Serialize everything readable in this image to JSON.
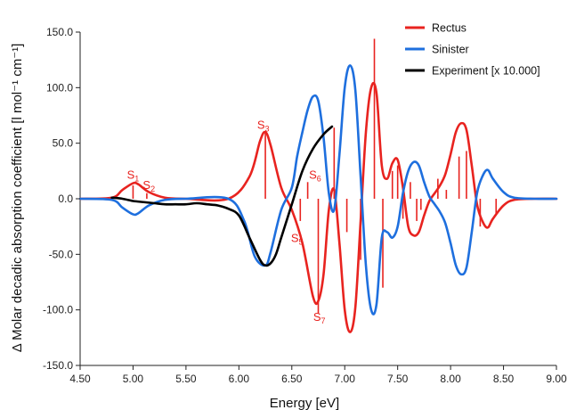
{
  "chart_data": {
    "type": "line",
    "title": "",
    "xlabel": "Energy [eV]",
    "ylabel": "Δ Molar decadic absorption coefficient [l mol⁻¹ cm⁻¹]",
    "xlim": [
      4.5,
      9.0
    ],
    "ylim": [
      -150.0,
      150.0
    ],
    "x_ticks": [
      "4.50",
      "5.00",
      "5.50",
      "6.00",
      "6.50",
      "7.00",
      "7.50",
      "8.00",
      "8.50",
      "9.00"
    ],
    "y_ticks": [
      "150.0",
      "100.0",
      "50.0",
      "0.0",
      "-50.0",
      "-100.0",
      "-150.0"
    ],
    "legend_position": "top-right",
    "series": [
      {
        "name": "Rectus",
        "color": "#e8231f",
        "x": [
          4.5,
          4.8,
          4.9,
          5.0,
          5.05,
          5.15,
          5.3,
          5.5,
          5.9,
          6.1,
          6.2,
          6.25,
          6.3,
          6.4,
          6.5,
          6.6,
          6.7,
          6.75,
          6.8,
          6.85,
          6.9,
          6.95,
          7.0,
          7.05,
          7.1,
          7.15,
          7.2,
          7.25,
          7.3,
          7.35,
          7.4,
          7.45,
          7.5,
          7.55,
          7.6,
          7.65,
          7.7,
          7.75,
          7.8,
          7.85,
          7.9,
          7.95,
          8.0,
          8.05,
          8.1,
          8.15,
          8.2,
          8.25,
          8.3,
          8.35,
          8.4,
          8.5,
          8.6,
          8.8,
          9.0
        ],
        "y": [
          0,
          1,
          8,
          14,
          13,
          6,
          1,
          0,
          0,
          20,
          52,
          60,
          48,
          10,
          -10,
          -40,
          -88,
          -92,
          -68,
          -10,
          8,
          -40,
          -100,
          -120,
          -98,
          -20,
          60,
          100,
          95,
          30,
          18,
          32,
          35,
          10,
          -25,
          -33,
          -30,
          -15,
          -2,
          5,
          12,
          22,
          40,
          60,
          68,
          62,
          30,
          -5,
          -20,
          -26,
          -18,
          -6,
          -1,
          0,
          0
        ]
      },
      {
        "name": "Sinister",
        "color": "#1e6fde",
        "x": [
          4.5,
          4.8,
          4.9,
          5.0,
          5.05,
          5.15,
          5.3,
          5.5,
          5.9,
          6.05,
          6.15,
          6.25,
          6.3,
          6.4,
          6.5,
          6.55,
          6.6,
          6.65,
          6.7,
          6.75,
          6.8,
          6.85,
          6.9,
          6.95,
          7.0,
          7.05,
          7.1,
          7.15,
          7.2,
          7.25,
          7.3,
          7.35,
          7.4,
          7.45,
          7.5,
          7.55,
          7.6,
          7.65,
          7.7,
          7.75,
          7.8,
          7.85,
          7.9,
          7.95,
          8.0,
          8.05,
          8.1,
          8.15,
          8.2,
          8.25,
          8.3,
          8.35,
          8.4,
          8.5,
          8.6,
          8.8,
          9.0
        ],
        "y": [
          0,
          -1,
          -8,
          -14,
          -13,
          -6,
          -1,
          0,
          0,
          -20,
          -52,
          -60,
          -48,
          -10,
          10,
          38,
          60,
          80,
          92,
          88,
          55,
          5,
          -10,
          40,
          100,
          120,
          98,
          20,
          -60,
          -100,
          -95,
          -35,
          -30,
          -35,
          -25,
          5,
          25,
          33,
          30,
          15,
          2,
          -5,
          -12,
          -22,
          -40,
          -60,
          -68,
          -62,
          -30,
          5,
          20,
          26,
          18,
          6,
          1,
          0,
          0
        ]
      },
      {
        "name": "Experiment [x 10.000]",
        "color": "#000000",
        "x": [
          4.8,
          4.9,
          5.0,
          5.1,
          5.2,
          5.3,
          5.4,
          5.5,
          5.6,
          5.7,
          5.8,
          5.9,
          6.0,
          6.1,
          6.2,
          6.25,
          6.3,
          6.35,
          6.4,
          6.5,
          6.6,
          6.7,
          6.8,
          6.88
        ],
        "y": [
          1,
          0,
          -2,
          -3,
          -4,
          -5,
          -5,
          -5,
          -4,
          -5,
          -6,
          -9,
          -15,
          -35,
          -55,
          -60,
          -58,
          -50,
          -35,
          -5,
          25,
          45,
          58,
          65
        ]
      }
    ],
    "sticks": {
      "color": "#e8231f",
      "x": [
        5.0,
        5.13,
        6.25,
        6.65,
        6.75,
        6.58,
        6.9,
        7.02,
        7.15,
        7.28,
        7.36,
        7.45,
        7.5,
        7.55,
        7.62,
        7.68,
        7.72,
        7.88,
        7.96,
        8.08,
        8.15,
        8.28,
        8.43
      ],
      "y": [
        12,
        5,
        60,
        15,
        -103,
        -20,
        64,
        -30,
        -55,
        144,
        -80,
        25,
        30,
        -18,
        15,
        -20,
        -10,
        18,
        8,
        38,
        43,
        -25,
        -15
      ]
    },
    "annotations": [
      {
        "label": "S",
        "sub": "1",
        "x": 5.0,
        "y": 18
      },
      {
        "label": "S",
        "sub": "2",
        "x": 5.15,
        "y": 9
      },
      {
        "label": "S",
        "sub": "3",
        "x": 6.23,
        "y": 63
      },
      {
        "label": "S",
        "sub": "5",
        "x": 6.55,
        "y": -39
      },
      {
        "label": "S",
        "sub": "6",
        "x": 6.72,
        "y": 18
      },
      {
        "label": "S",
        "sub": "7",
        "x": 6.76,
        "y": -110
      }
    ]
  }
}
